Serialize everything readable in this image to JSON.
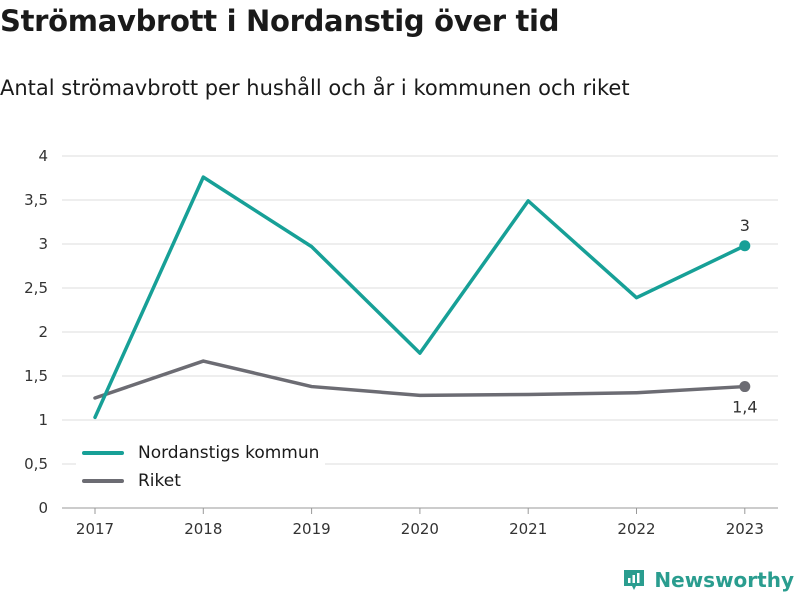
{
  "title": "Strömavbrott i Nordanstig över tid",
  "subtitle": "Antal strömavbrott per hushåll och år i kommunen och riket",
  "brand": "Newsworthy",
  "colors": {
    "kommun": "#17a097",
    "riket": "#6c6c73",
    "grid": "#dddddd"
  },
  "chart_data": {
    "type": "line",
    "x": [
      "2017",
      "2018",
      "2019",
      "2020",
      "2021",
      "2022",
      "2023"
    ],
    "series": [
      {
        "name": "Nordanstigs kommun",
        "values": [
          1.03,
          3.76,
          2.97,
          1.76,
          3.49,
          2.39,
          2.98
        ],
        "end_label": "3"
      },
      {
        "name": "Riket",
        "values": [
          1.25,
          1.67,
          1.38,
          1.28,
          1.29,
          1.31,
          1.38
        ],
        "end_label": "1,4"
      }
    ],
    "ylim": [
      0,
      4
    ],
    "yticks": [
      "0",
      "0,5",
      "1",
      "1,5",
      "2",
      "2,5",
      "3",
      "3,5",
      "4"
    ],
    "ytick_values": [
      0,
      0.5,
      1,
      1.5,
      2,
      2.5,
      3,
      3.5,
      4
    ],
    "grid": true,
    "legend_position": "bottom-left"
  }
}
